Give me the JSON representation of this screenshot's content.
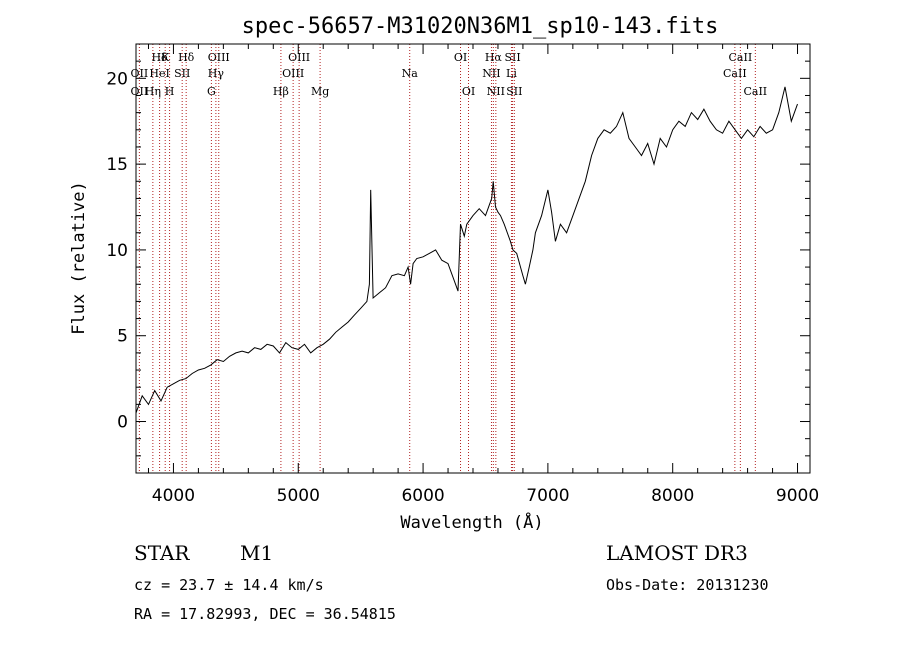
{
  "chart_data": {
    "type": "line",
    "title": "spec-56657-M31020N36M1_sp10-143.fits",
    "xlabel": "Wavelength (Å)",
    "ylabel": "Flux (relative)",
    "xlim": [
      3700,
      9100
    ],
    "ylim": [
      -3,
      22
    ],
    "xticks": [
      4000,
      5000,
      6000,
      7000,
      8000,
      9000
    ],
    "yticks": [
      0,
      5,
      10,
      15,
      20
    ],
    "grid": false,
    "series": [
      {
        "name": "spectrum",
        "x": [
          3700,
          3750,
          3800,
          3850,
          3900,
          3950,
          4000,
          4050,
          4100,
          4150,
          4200,
          4250,
          4300,
          4350,
          4400,
          4450,
          4500,
          4550,
          4600,
          4650,
          4700,
          4750,
          4800,
          4850,
          4900,
          4950,
          5000,
          5050,
          5100,
          5150,
          5200,
          5250,
          5300,
          5350,
          5400,
          5450,
          5500,
          5550,
          5570,
          5580,
          5600,
          5650,
          5700,
          5750,
          5800,
          5850,
          5880,
          5900,
          5920,
          5950,
          6000,
          6050,
          6100,
          6150,
          6200,
          6250,
          6280,
          6300,
          6330,
          6350,
          6400,
          6450,
          6500,
          6530,
          6550,
          6562,
          6580,
          6600,
          6620,
          6650,
          6700,
          6720,
          6750,
          6800,
          6820,
          6850,
          6880,
          6900,
          6950,
          7000,
          7030,
          7060,
          7100,
          7150,
          7200,
          7250,
          7300,
          7350,
          7400,
          7450,
          7500,
          7550,
          7600,
          7650,
          7700,
          7750,
          7800,
          7850,
          7900,
          7950,
          8000,
          8050,
          8100,
          8150,
          8200,
          8250,
          8300,
          8350,
          8400,
          8450,
          8500,
          8550,
          8600,
          8650,
          8700,
          8750,
          8800,
          8850,
          8900,
          8950,
          9000
        ],
        "y": [
          0.5,
          1.5,
          1.0,
          1.8,
          1.2,
          2.0,
          2.2,
          2.4,
          2.5,
          2.8,
          3.0,
          3.1,
          3.3,
          3.6,
          3.5,
          3.8,
          4.0,
          4.1,
          4.0,
          4.3,
          4.2,
          4.5,
          4.4,
          4.0,
          4.6,
          4.3,
          4.2,
          4.5,
          4.0,
          4.3,
          4.5,
          4.8,
          5.2,
          5.5,
          5.8,
          6.2,
          6.6,
          7.0,
          8.0,
          13.5,
          7.2,
          7.5,
          7.8,
          8.5,
          8.6,
          8.5,
          9.0,
          8.0,
          9.2,
          9.5,
          9.6,
          9.8,
          10.0,
          9.4,
          9.2,
          8.2,
          7.6,
          11.5,
          10.8,
          11.5,
          12.0,
          12.4,
          12.0,
          12.6,
          13.0,
          14.0,
          12.5,
          12.2,
          12.0,
          11.5,
          10.5,
          10.0,
          9.8,
          8.5,
          8.0,
          9.0,
          10.0,
          11.0,
          12.0,
          13.5,
          12.2,
          10.5,
          11.5,
          11.0,
          12.0,
          13.0,
          14.0,
          15.5,
          16.5,
          17.0,
          16.8,
          17.2,
          18.0,
          16.5,
          16.0,
          15.5,
          16.2,
          15.0,
          16.5,
          16.0,
          17.0,
          17.5,
          17.2,
          18.0,
          17.6,
          18.2,
          17.5,
          17.0,
          16.8,
          17.5,
          17.0,
          16.5,
          17.0,
          16.6,
          17.2,
          16.8,
          17.0,
          18.0,
          19.5,
          17.5,
          18.5
        ]
      }
    ],
    "line_markers_top": [
      {
        "label": "Hδ",
        "x": 3889
      },
      {
        "label": "K",
        "x": 3934
      },
      {
        "label": "Hδ",
        "x": 4102
      },
      {
        "label": "OIII",
        "x": 4363
      },
      {
        "label": "OIII",
        "x": 5007
      },
      {
        "label": "OI",
        "x": 6300
      },
      {
        "label": "Hα",
        "x": 6563
      },
      {
        "label": "SII",
        "x": 6717
      },
      {
        "label": "CaII",
        "x": 8542
      }
    ],
    "line_markers_mid": [
      {
        "label": "OII",
        "x": 3727
      },
      {
        "label": "HeI",
        "x": 3889
      },
      {
        "label": "SII",
        "x": 4070
      },
      {
        "label": "Hγ",
        "x": 4340
      },
      {
        "label": "OIII",
        "x": 4959
      },
      {
        "label": "Na",
        "x": 5893
      },
      {
        "label": "NII",
        "x": 6548
      },
      {
        "label": "Li",
        "x": 6708
      },
      {
        "label": "CaII",
        "x": 8498
      }
    ],
    "line_markers_low": [
      {
        "label": "OII",
        "x": 3727
      },
      {
        "label": "Hη",
        "x": 3835
      },
      {
        "label": "H",
        "x": 3969
      },
      {
        "label": "G",
        "x": 4304
      },
      {
        "label": "Hβ",
        "x": 4861
      },
      {
        "label": "Mg",
        "x": 5175
      },
      {
        "label": "OI",
        "x": 6364
      },
      {
        "label": "NII",
        "x": 6583
      },
      {
        "label": "SII",
        "x": 6731
      },
      {
        "label": "CaII",
        "x": 8662
      }
    ]
  },
  "footer": {
    "object_class": "STAR",
    "subclass": "M1",
    "cz": "cz = 23.7 ± 14.4 km/s",
    "coords": "RA =  17.82993, DEC =  36.54815",
    "survey": "LAMOST DR3",
    "obs_date": "Obs-Date: 20131230"
  },
  "colors": {
    "line": "#000000",
    "marker": "#b22222",
    "axis": "#000000"
  }
}
